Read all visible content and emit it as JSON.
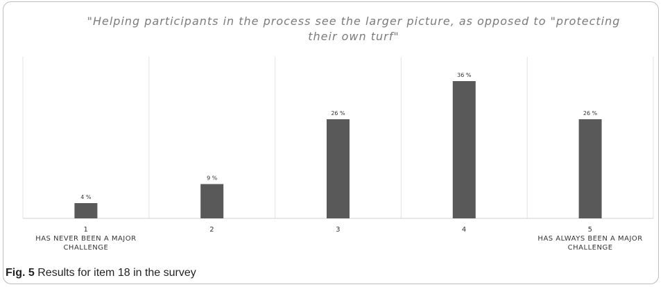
{
  "chart_data": {
    "type": "bar",
    "title": "\"Helping participants in the process see the larger picture, as opposed to \"protecting their own turf\"",
    "categories": [
      "1",
      "2",
      "3",
      "4",
      "5"
    ],
    "category_sublabels": [
      "HAS NEVER BEEN A MAJOR CHALLENGE",
      "",
      "",
      "",
      "HAS ALWAYS BEEN A MAJOR CHALLENGE"
    ],
    "values": [
      4,
      9,
      26,
      36,
      26
    ],
    "data_labels": [
      "4 %",
      "9 %",
      "26 %",
      "36 %",
      "26 %"
    ],
    "ylim": [
      0,
      40
    ],
    "unit": "%",
    "bar_color": "#595959",
    "grid": "vertical separators only",
    "legend": "none"
  },
  "caption": {
    "label": "Fig. 5",
    "text": "Results for item 18 in the survey"
  }
}
